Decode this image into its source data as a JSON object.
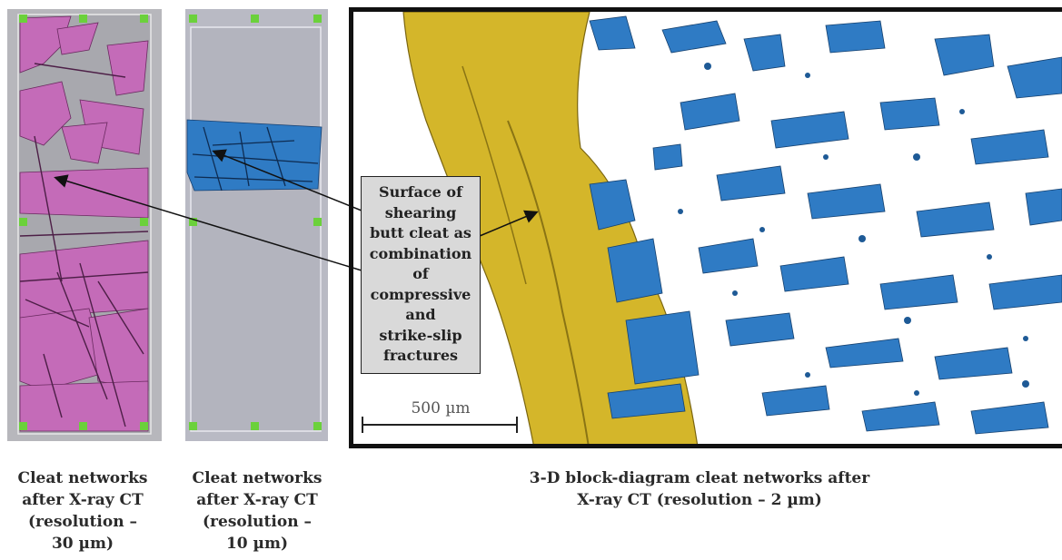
{
  "panels": [
    {
      "caption": [
        "Cleat networks",
        "after X-ray CT",
        "(resolution –",
        "30 µm)"
      ],
      "color": "#c46bb8"
    },
    {
      "caption": [
        "Cleat networks",
        "after X-ray CT",
        "(resolution –",
        "10 µm)"
      ],
      "color": "#2f7bc4"
    },
    {
      "caption": [
        "3-D block-diagram cleat networks after",
        "X-ray CT  (resolution – 2 µm)"
      ],
      "color": "#d4b62a"
    }
  ],
  "callout": {
    "lines": [
      "Surface of",
      "shearing",
      "butt cleat as",
      "combination",
      "of",
      "compressive",
      "and",
      "strike-slip",
      "fractures"
    ]
  },
  "scale_bar": {
    "label": "500 µm"
  },
  "colors": {
    "pink": "#c46bb8",
    "blue": "#2f7bc4",
    "gold": "#d4b62a",
    "marker": "#6bd13b"
  }
}
